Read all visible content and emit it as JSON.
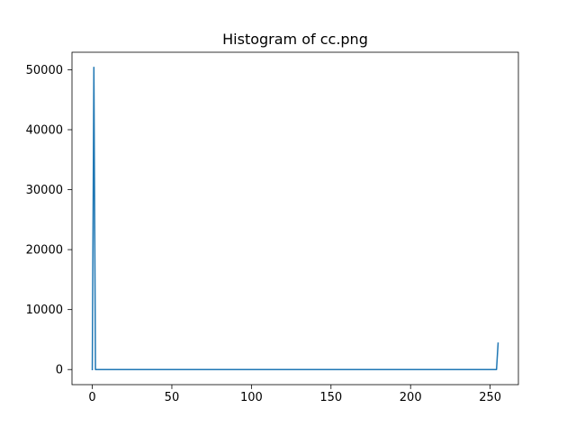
{
  "chart_data": {
    "type": "line",
    "title": "Histogram of cc.png",
    "xlabel": "",
    "ylabel": "",
    "xlim": [
      -12.75,
      267.75
    ],
    "ylim": [
      -2520,
      52920
    ],
    "x_ticks": [
      0,
      50,
      100,
      150,
      200,
      250
    ],
    "y_ticks": [
      0,
      10000,
      20000,
      30000,
      40000,
      50000
    ],
    "grid": false,
    "series": [
      {
        "color": "#1f77b4",
        "x": [
          0,
          1,
          2,
          3,
          50,
          100,
          150,
          200,
          253,
          254,
          255
        ],
        "y": [
          0,
          50400,
          0,
          0,
          0,
          0,
          0,
          0,
          0,
          0,
          4400
        ]
      }
    ]
  }
}
